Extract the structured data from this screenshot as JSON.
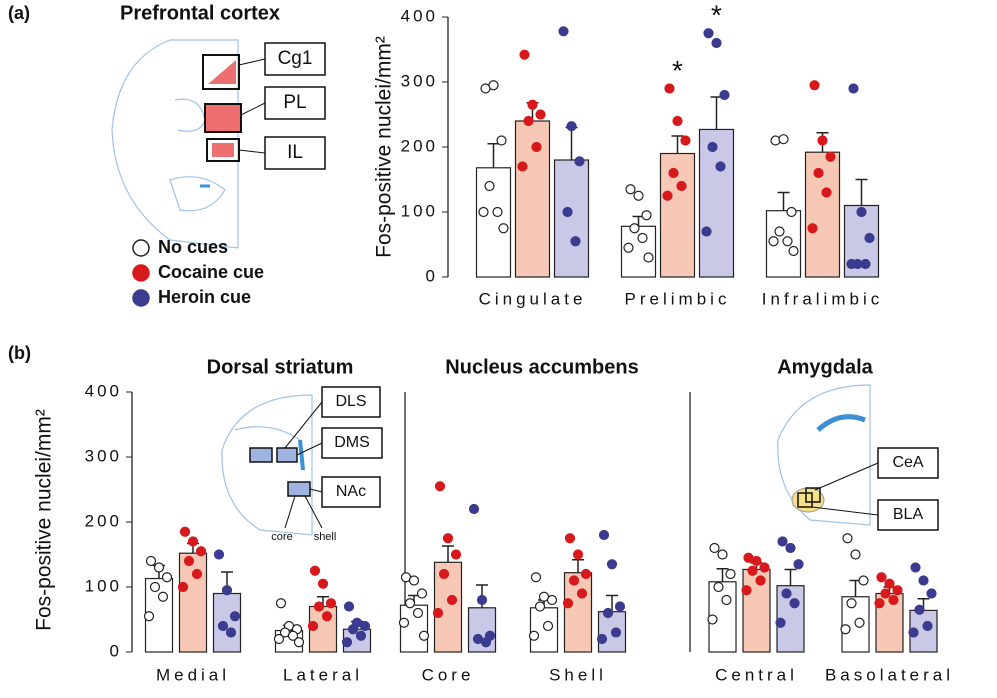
{
  "chart_data": [
    {
      "type": "bar",
      "panel_label": "(a)",
      "title": "Prefrontal cortex",
      "ylabel": "Fos-positive nuclei/mm²",
      "diagram_labels": [
        "Cg1",
        "PL",
        "IL"
      ],
      "categories": [
        "Cingulate",
        "Prelimbic",
        "Infralimbic"
      ],
      "ylim": [
        0,
        400
      ],
      "yticks": [
        0,
        100,
        200,
        300,
        400
      ],
      "series": [
        {
          "name": "No cues",
          "color": "#ffffff",
          "point_color": "#ffffff",
          "values": [
            168,
            78,
            102
          ],
          "errors": [
            37,
            15,
            28
          ],
          "points": [
            [
              290,
              295,
              210,
              140,
              100,
              100,
              75
            ],
            [
              135,
              125,
              95,
              75,
              60,
              45,
              30
            ],
            [
              210,
              212,
              100,
              70,
              55,
              55,
              40
            ]
          ]
        },
        {
          "name": "Cocaine cue",
          "color": "#f7c8b6",
          "point_color": "#d7191c",
          "values": [
            240,
            190,
            192
          ],
          "errors": [
            28,
            27,
            30
          ],
          "points": [
            [
              342,
              265,
              250,
              240,
              200,
              170
            ],
            [
              290,
              240,
              210,
              160,
              140,
              125
            ],
            [
              295,
              210,
              185,
              160,
              130,
              75
            ]
          ]
        },
        {
          "name": "Heroin cue",
          "color": "#c9c8e6",
          "point_color": "#3b3b8f",
          "values": [
            180,
            227,
            110
          ],
          "errors": [
            50,
            50,
            40
          ],
          "points": [
            [
              378,
              232,
              178,
              100,
              55
            ],
            [
              375,
              360,
              280,
              200,
              170,
              70
            ],
            [
              290,
              100,
              60,
              20,
              20,
              20
            ]
          ]
        }
      ],
      "annotations": [
        {
          "text": "*",
          "category": 1,
          "series": 1
        },
        {
          "text": "*",
          "category": 1,
          "series": 2
        }
      ]
    },
    {
      "type": "bar",
      "panel_label": "(b)",
      "title": "Dorsal striatum",
      "ylabel": "Fos-positive nuclei/mm²",
      "diagram_labels": [
        "DLS",
        "DMS",
        "NAc",
        "core",
        "shell"
      ],
      "categories": [
        "Medial",
        "Lateral"
      ],
      "ylim": [
        0,
        400
      ],
      "yticks": [
        0,
        100,
        200,
        300,
        400
      ],
      "series": [
        {
          "color": "#ffffff",
          "point_color": "#ffffff",
          "values": [
            113,
            33
          ],
          "errors": [
            20,
            8
          ],
          "points": [
            [
              140,
              130,
              115,
              100,
              85,
              55
            ],
            [
              75,
              40,
              35,
              30,
              25,
              20,
              15
            ]
          ]
        },
        {
          "color": "#f7c8b6",
          "point_color": "#d7191c",
          "values": [
            152,
            70
          ],
          "errors": [
            15,
            15
          ],
          "points": [
            [
              185,
              170,
              155,
              140,
              120,
              100
            ],
            [
              125,
              105,
              75,
              70,
              55,
              40
            ]
          ]
        },
        {
          "color": "#c9c8e6",
          "point_color": "#3b3b8f",
          "values": [
            90,
            35
          ],
          "errors": [
            33,
            12
          ],
          "points": [
            [
              150,
              95,
              55,
              40,
              30
            ],
            [
              70,
              45,
              40,
              35,
              25,
              15
            ]
          ]
        }
      ]
    },
    {
      "type": "bar",
      "title": "Nucleus accumbens",
      "categories": [
        "Core",
        "Shell"
      ],
      "ylim": [
        0,
        400
      ],
      "series": [
        {
          "color": "#ffffff",
          "point_color": "#ffffff",
          "values": [
            72,
            68
          ],
          "errors": [
            15,
            12
          ],
          "points": [
            [
              115,
              110,
              90,
              75,
              60,
              45,
              25
            ],
            [
              115,
              85,
              80,
              70,
              40,
              25
            ]
          ]
        },
        {
          "color": "#f7c8b6",
          "point_color": "#d7191c",
          "values": [
            138,
            122
          ],
          "errors": [
            25,
            20
          ],
          "points": [
            [
              255,
              175,
              150,
              120,
              80,
              60
            ],
            [
              175,
              150,
              120,
              110,
              90,
              75
            ]
          ]
        },
        {
          "color": "#c9c8e6",
          "point_color": "#3b3b8f",
          "values": [
            68,
            62
          ],
          "errors": [
            35,
            25
          ],
          "points": [
            [
              220,
              80,
              25,
              20,
              15
            ],
            [
              180,
              135,
              70,
              60,
              30,
              20
            ]
          ]
        }
      ]
    },
    {
      "type": "bar",
      "title": "Amygdala",
      "diagram_labels": [
        "CeA",
        "BLA"
      ],
      "categories": [
        "Central",
        "Basolateral"
      ],
      "ylim": [
        0,
        400
      ],
      "series": [
        {
          "color": "#ffffff",
          "point_color": "#ffffff",
          "values": [
            108,
            85
          ],
          "errors": [
            20,
            25
          ],
          "points": [
            [
              160,
              150,
              120,
              100,
              80,
              50
            ],
            [
              175,
              150,
              110,
              75,
              45,
              35
            ]
          ]
        },
        {
          "color": "#f7c8b6",
          "point_color": "#d7191c",
          "values": [
            127,
            90
          ],
          "errors": [
            10,
            10
          ],
          "points": [
            [
              145,
              140,
              130,
              125,
              110,
              95
            ],
            [
              115,
              105,
              95,
              90,
              80,
              75
            ]
          ]
        },
        {
          "color": "#c9c8e6",
          "point_color": "#3b3b8f",
          "values": [
            102,
            64
          ],
          "errors": [
            25,
            18
          ],
          "points": [
            [
              170,
              160,
              135,
              90,
              75,
              45
            ],
            [
              130,
              110,
              90,
              65,
              40,
              30
            ]
          ]
        }
      ]
    }
  ]
}
